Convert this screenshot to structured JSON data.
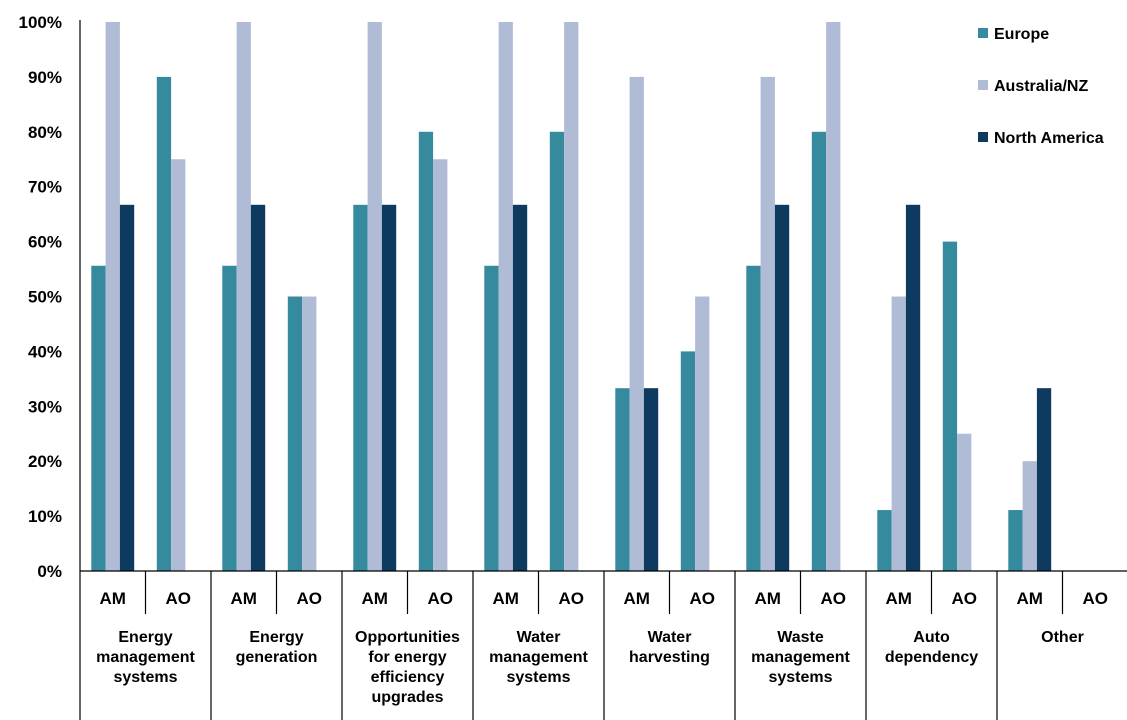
{
  "chart_data": {
    "type": "bar",
    "title": "",
    "xlabel": "",
    "ylabel": "",
    "ylim": [
      0,
      100
    ],
    "yticks": [
      "0%",
      "10%",
      "20%",
      "30%",
      "40%",
      "50%",
      "60%",
      "70%",
      "80%",
      "90%",
      "100%"
    ],
    "ytick_values": [
      0,
      10,
      20,
      30,
      40,
      50,
      60,
      70,
      80,
      90,
      100
    ],
    "grid": false,
    "legend_position": "top-right",
    "groups": [
      "Energy management systems",
      "Energy generation",
      "Opportunities for energy efficiency upgrades",
      "Water management systems",
      "Water harvesting",
      "Waste management systems",
      "Auto dependency",
      "Other"
    ],
    "group_label_lines": [
      [
        "Energy",
        "management",
        "systems"
      ],
      [
        "Energy",
        "generation"
      ],
      [
        "Opportunities",
        "for energy",
        "efficiency",
        "upgrades"
      ],
      [
        "Water",
        "management",
        "systems"
      ],
      [
        "Water",
        "harvesting"
      ],
      [
        "Waste",
        "management",
        "systems"
      ],
      [
        "Auto",
        "dependency"
      ],
      [
        "Other"
      ]
    ],
    "subcategories": [
      "AM",
      "AO"
    ],
    "series": [
      {
        "name": "Europe",
        "color": "#358a9e",
        "values": [
          55.6,
          90,
          55.6,
          50,
          66.7,
          80,
          55.6,
          80,
          33.3,
          40,
          55.6,
          80,
          11.1,
          60,
          11.1,
          null
        ]
      },
      {
        "name": "Australia/NZ",
        "color": "#b0bcd6",
        "values": [
          100,
          75,
          100,
          50,
          100,
          75,
          100,
          100,
          90,
          50,
          90,
          100,
          50,
          25,
          20,
          null
        ]
      },
      {
        "name": "North America",
        "color": "#0d3a5e",
        "values": [
          66.7,
          null,
          66.7,
          null,
          66.7,
          null,
          66.7,
          null,
          33.3,
          null,
          66.7,
          null,
          66.7,
          null,
          33.3,
          null
        ]
      }
    ]
  }
}
